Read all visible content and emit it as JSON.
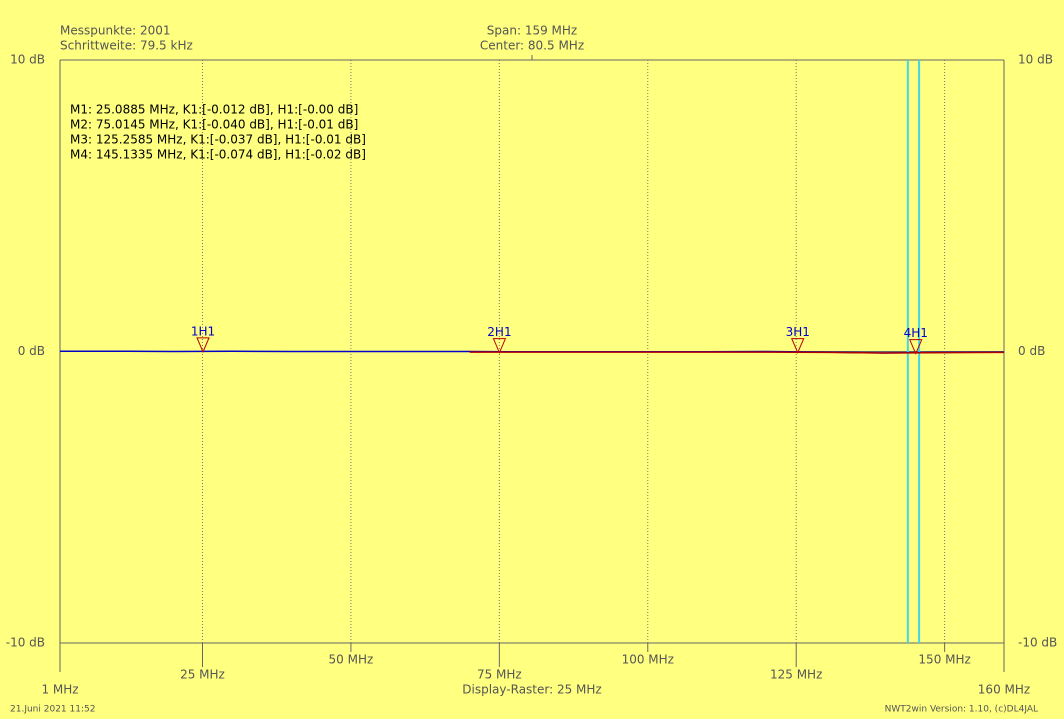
{
  "chart_data": {
    "type": "line",
    "info_left": [
      "Messpunkte: 2001",
      "Schrittweite: 79.5 kHz"
    ],
    "info_center": [
      "Span: 159 MHz",
      "Center: 80.5 MHz"
    ],
    "marker_readout": [
      "M1: 25.0885 MHz, K1:[-0.012 dB], H1:[-0.00 dB]",
      "M2: 75.0145 MHz, K1:[-0.040 dB], H1:[-0.01 dB]",
      "M3: 125.2585 MHz, K1:[-0.037 dB], H1:[-0.01 dB]",
      "M4: 145.1335 MHz, K1:[-0.074 dB], H1:[-0.02 dB]"
    ],
    "xlabel": "Display-Raster: 25 MHz",
    "footer_left": "21.Juni 2021 11:52",
    "footer_right": "NWT2win Version: 1.10, (c)DL4JAL",
    "xlim": [
      1,
      160
    ],
    "ylim": [
      -10,
      10
    ],
    "xticks": [
      {
        "value": 1,
        "label": "1 MHz"
      },
      {
        "value": 25,
        "label": "25 MHz"
      },
      {
        "value": 50,
        "label": "50 MHz"
      },
      {
        "value": 75,
        "label": "75 MHz"
      },
      {
        "value": 100,
        "label": "100 MHz"
      },
      {
        "value": 125,
        "label": "125 MHz"
      },
      {
        "value": 150,
        "label": "150 MHz"
      },
      {
        "value": 160,
        "label": "160 MHz"
      }
    ],
    "yticks": [
      {
        "value": 10,
        "label": "10 dB"
      },
      {
        "value": 0,
        "label": "0 dB"
      },
      {
        "value": -10,
        "label": "-10 dB"
      }
    ],
    "grid": true,
    "x": [
      1,
      10,
      20,
      30,
      40,
      50,
      60,
      70,
      80,
      90,
      100,
      110,
      120,
      130,
      140,
      150,
      160
    ],
    "series": [
      {
        "color": "#0000c8",
        "values": [
          0.01,
          0.01,
          0.0,
          0.01,
          0.0,
          0.0,
          0.0,
          0.0,
          -0.01,
          -0.01,
          -0.01,
          -0.01,
          0.0,
          -0.02,
          -0.05,
          -0.03,
          -0.02
        ]
      },
      {
        "color": "#b00000",
        "values": [
          null,
          null,
          null,
          null,
          null,
          null,
          null,
          -0.02,
          -0.02,
          -0.02,
          -0.02,
          -0.02,
          -0.02,
          -0.03,
          -0.05,
          -0.04,
          -0.03
        ]
      }
    ],
    "markers": {
      "labels": [
        "1H1",
        "2H1",
        "3H1",
        "4H1"
      ],
      "x": [
        25.0885,
        75.0145,
        125.2585,
        145.1335
      ],
      "values": [
        -0.012,
        -0.04,
        -0.037,
        -0.074
      ]
    },
    "cursors": [
      143.8,
      145.7
    ],
    "cursor_color": "#40d8e8"
  }
}
